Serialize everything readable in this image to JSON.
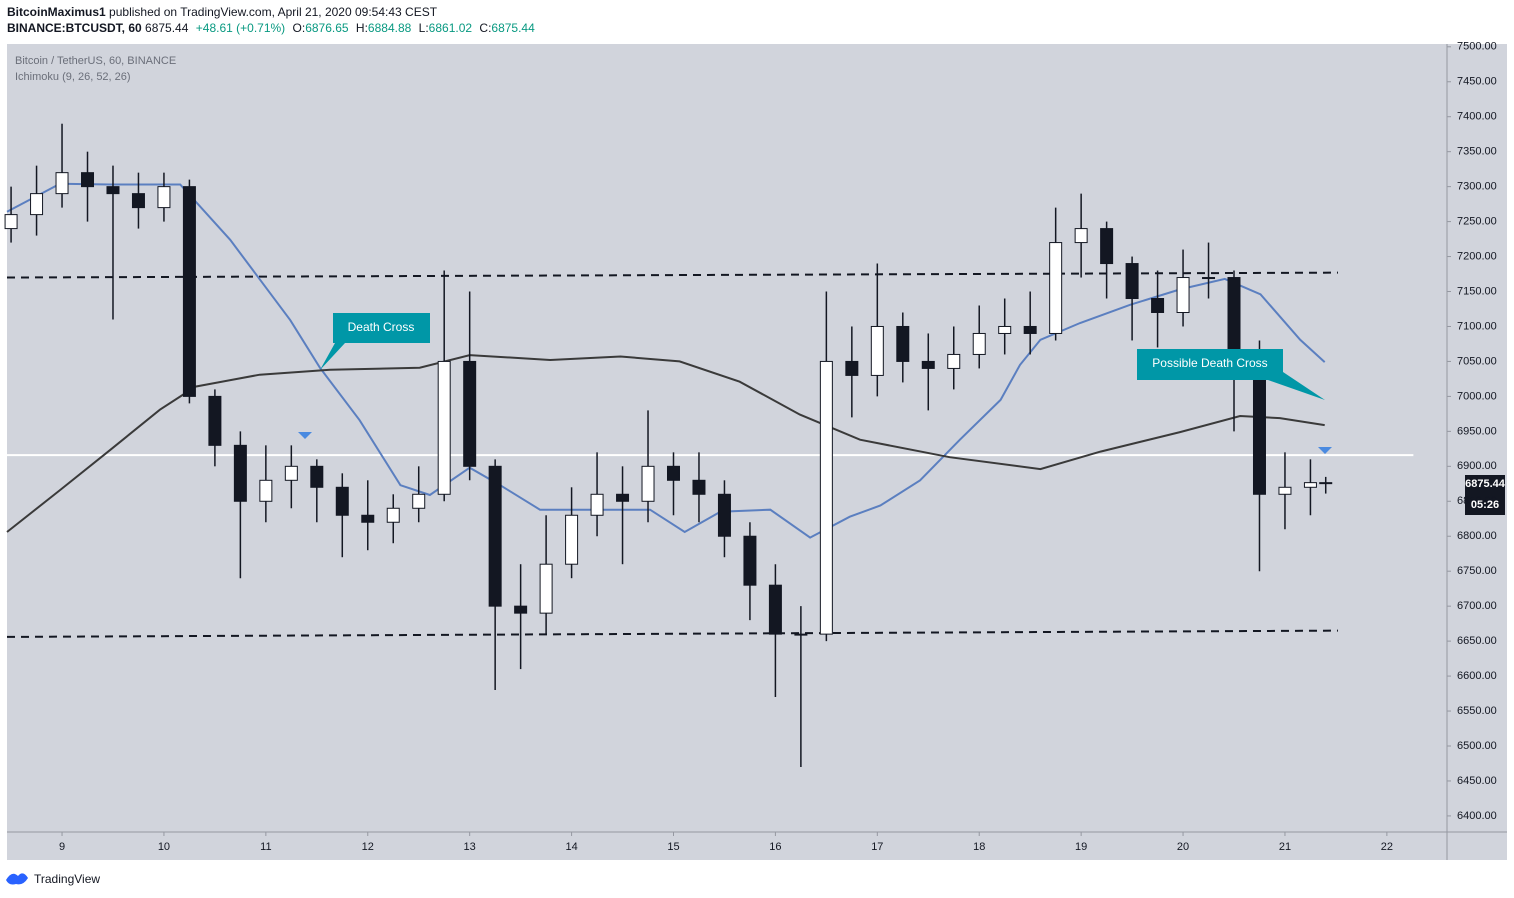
{
  "header": {
    "author": "BitcoinMaximus1",
    "published": "published on TradingView.com, April 21, 2020 09:54:43 CEST",
    "symbol": "BINANCE:BTCUSDT, 60",
    "change": "+48.61 (+0.71%)",
    "ohlc_prefixes": [
      "O:",
      "H:",
      "L:",
      "C:"
    ]
  },
  "footer": {
    "brand": "TradingView"
  },
  "chart_data": {
    "type": "candlestick",
    "legend_lines": [
      "Bitcoin / TetherUS, 60, BINANCE",
      "Ichimoku (9, 26, 52, 26)"
    ],
    "annotations": [
      "Death Cross",
      "Possible Death Cross"
    ],
    "countdown": "05:26",
    "up_color": "#ffffff",
    "down_color": "#131722",
    "background": "#d1d4dc",
    "xlim": [
      8.46,
      22.59
    ],
    "xticks": [
      9,
      10,
      11,
      12,
      13,
      14,
      15,
      16,
      17,
      18,
      19,
      20,
      21,
      22
    ],
    "ylim": [
      6377,
      7504
    ],
    "yticks": [
      {
        "value": 6400,
        "label": "6400.00"
      },
      {
        "value": 6450,
        "label": "6450.00"
      },
      {
        "value": 6500,
        "label": "6500.00"
      },
      {
        "value": 6550,
        "label": "6550.00"
      },
      {
        "value": 6600,
        "label": "6600.00"
      },
      {
        "value": 6650,
        "label": "6650.00"
      },
      {
        "value": 6700,
        "label": "6700.00"
      },
      {
        "value": 6750,
        "label": "6750.00"
      },
      {
        "value": 6800,
        "label": "6800.00"
      },
      {
        "value": 6850,
        "label": "6850.00"
      },
      {
        "value": 6900,
        "label": "6900.00"
      },
      {
        "value": 6950,
        "label": "6950.00"
      },
      {
        "value": 7000,
        "label": "7000.00"
      },
      {
        "value": 7050,
        "label": "7050.00"
      },
      {
        "value": 7100,
        "label": "7100.00"
      },
      {
        "value": 7150,
        "label": "7150.00"
      },
      {
        "value": 7200,
        "label": "7200.00"
      },
      {
        "value": 7250,
        "label": "7250.00"
      },
      {
        "value": 7300,
        "label": "7300.00"
      },
      {
        "value": 7350,
        "label": "7350.00"
      },
      {
        "value": 7400,
        "label": "7400.00"
      },
      {
        "value": 7450,
        "label": "7450.00"
      },
      {
        "value": 7500,
        "label": "7500.00"
      }
    ],
    "x": [
      8.5,
      8.75,
      9.0,
      9.25,
      9.5,
      9.75,
      10.0,
      10.25,
      10.5,
      10.75,
      11.0,
      11.25,
      11.5,
      11.75,
      12.0,
      12.25,
      12.5,
      12.75,
      13.0,
      13.25,
      13.5,
      13.75,
      14.0,
      14.25,
      14.5,
      14.75,
      15.0,
      15.25,
      15.5,
      15.75,
      16.0,
      16.25,
      16.5,
      16.75,
      17.0,
      17.25,
      17.5,
      17.75,
      18.0,
      18.25,
      18.5,
      18.75,
      19.0,
      19.25,
      19.5,
      19.75,
      20.0,
      20.25,
      20.5,
      20.75,
      21.0,
      21.25,
      21.4
    ],
    "open": [
      7240,
      7260,
      7290,
      7320,
      7300,
      7290,
      7270,
      7300,
      7000,
      6930,
      6850,
      6880,
      6900,
      6870,
      6830,
      6820,
      6840,
      6860,
      7050,
      6900,
      6700,
      6690,
      6760,
      6830,
      6860,
      6850,
      6900,
      6880,
      6860,
      6800,
      6730,
      6660,
      6660,
      7050,
      7030,
      7100,
      7050,
      7040,
      7060,
      7090,
      7100,
      7090,
      7220,
      7240,
      7190,
      7140,
      7120,
      7170,
      7170,
      7060,
      6860,
      6870,
      6876.65
    ],
    "high": [
      7300,
      7330,
      7390,
      7350,
      7330,
      7320,
      7320,
      7310,
      7010,
      6950,
      6930,
      6930,
      6910,
      6890,
      6880,
      6860,
      6900,
      7180,
      7150,
      6910,
      6760,
      6830,
      6870,
      6920,
      6900,
      6980,
      6920,
      6920,
      6880,
      6820,
      6760,
      6700,
      7150,
      7100,
      7190,
      7120,
      7090,
      7100,
      7130,
      7140,
      7150,
      7270,
      7290,
      7250,
      7200,
      7180,
      7210,
      7220,
      7180,
      7080,
      6920,
      6910,
      6884.88
    ],
    "low": [
      7220,
      7230,
      7270,
      7250,
      7110,
      7240,
      7250,
      6990,
      6900,
      6740,
      6820,
      6840,
      6820,
      6770,
      6780,
      6790,
      6820,
      6850,
      6880,
      6580,
      6610,
      6660,
      6740,
      6800,
      6760,
      6820,
      6830,
      6820,
      6770,
      6680,
      6570,
      6470,
      6650,
      6970,
      7000,
      7020,
      6980,
      7010,
      7040,
      7060,
      7060,
      7080,
      7170,
      7140,
      7080,
      7070,
      7100,
      7140,
      6950,
      6750,
      6810,
      6830,
      6861.02
    ],
    "close": [
      7260,
      7290,
      7320,
      7300,
      7290,
      7270,
      7300,
      7000,
      6930,
      6850,
      6880,
      6900,
      6870,
      6830,
      6820,
      6840,
      6860,
      7050,
      6900,
      6700,
      6690,
      6760,
      6830,
      6860,
      6850,
      6900,
      6880,
      6860,
      6800,
      6730,
      6660,
      6660,
      7050,
      7030,
      7100,
      7050,
      7040,
      7060,
      7090,
      7100,
      7090,
      7220,
      7240,
      7190,
      7140,
      7120,
      7170,
      7170,
      7060,
      6860,
      6870,
      6876.65,
      6875.44
    ],
    "series": [
      {
        "color": "#5b7fc0",
        "x": [
          8.46,
          8.98,
          9.47,
          10.16,
          10.65,
          11.24,
          11.53,
          11.92,
          12.32,
          12.61,
          13.0,
          13.3,
          13.69,
          14.28,
          14.77,
          15.11,
          15.46,
          15.95,
          16.34,
          16.73,
          17.03,
          17.42,
          17.81,
          18.21,
          18.4,
          18.6,
          18.99,
          19.48,
          19.97,
          20.41,
          20.76,
          21.15,
          21.39
        ],
        "values": [
          7264,
          7304,
          7303,
          7303,
          7224,
          7109,
          7041,
          6966,
          6873,
          6859,
          6898,
          6873,
          6838,
          6838,
          6838,
          6806,
          6835,
          6838,
          6798,
          6828,
          6844,
          6880,
          6938,
          6995,
          7045,
          7081,
          7105,
          7131,
          7153,
          7168,
          7146,
          7081,
          7049
        ]
      },
      {
        "color": "#3a3a3a",
        "x": [
          8.46,
          8.98,
          9.47,
          9.96,
          10.31,
          10.94,
          11.63,
          12.51,
          13.0,
          13.79,
          14.48,
          15.06,
          15.65,
          16.24,
          16.83,
          17.71,
          18.6,
          19.19,
          19.97,
          20.56,
          20.95,
          21.39
        ],
        "values": [
          6806,
          6866,
          6923,
          6981,
          7014,
          7031,
          7038,
          7041,
          7059,
          7052,
          7057,
          7050,
          7021,
          6974,
          6938,
          6913,
          6896,
          6921,
          6949,
          6972,
          6969,
          6959
        ]
      }
    ],
    "levels": [
      {
        "style": "dashed",
        "color": "#131722",
        "x": [
          8.46,
          21.52
        ],
        "values": [
          7170,
          7177
        ]
      },
      {
        "style": "dashed",
        "color": "#131722",
        "x": [
          8.46,
          21.52
        ],
        "values": [
          6656,
          6665
        ]
      },
      {
        "style": "solid",
        "color": "#ffffff",
        "x": [
          8.46,
          22.26
        ],
        "values": [
          6916,
          6916
        ]
      }
    ]
  }
}
